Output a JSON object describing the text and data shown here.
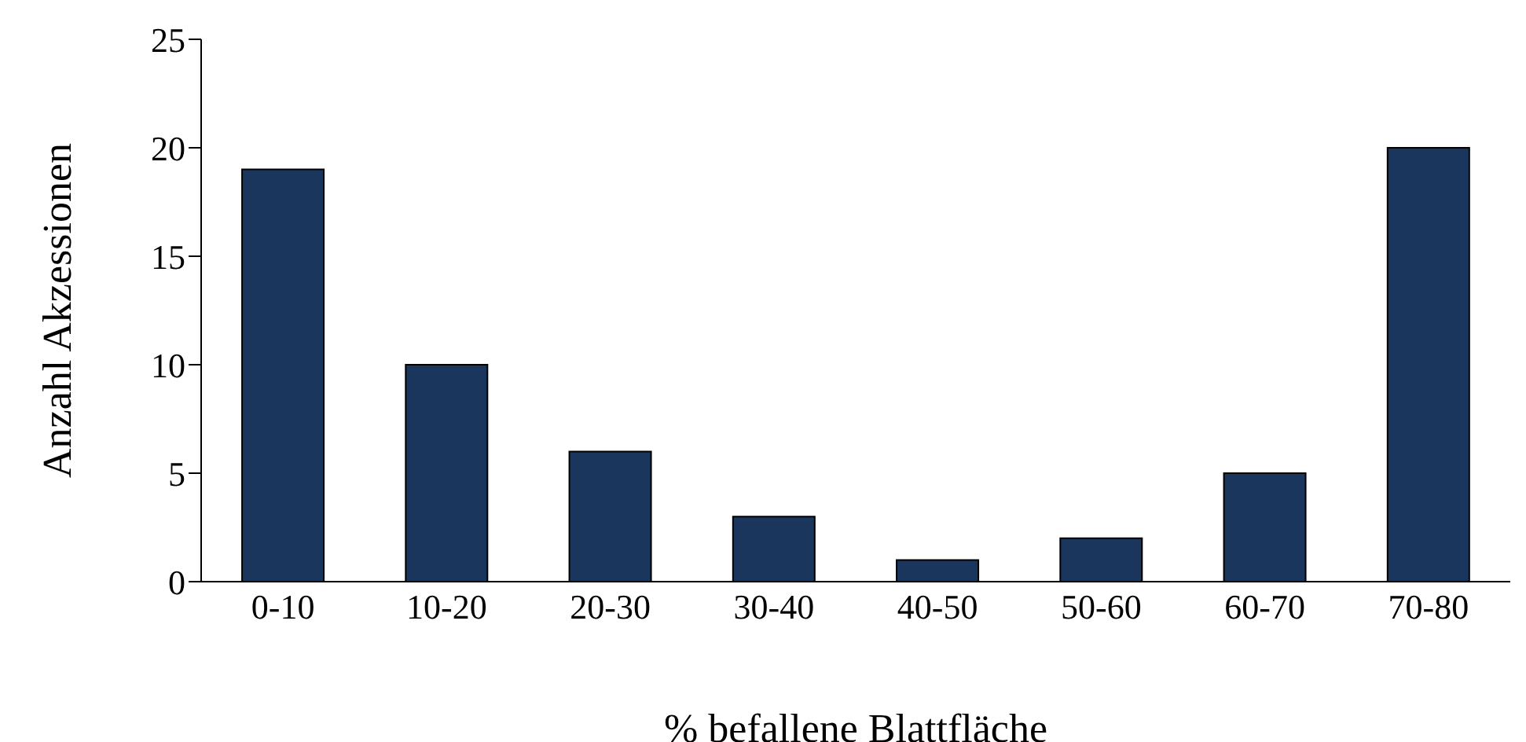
{
  "chart_data": {
    "type": "bar",
    "xlabel": "% befallene Blattfläche",
    "ylabel": "Anzahl Akzessionen",
    "categories": [
      "0-10",
      "10-20",
      "20-30",
      "30-40",
      "40-50",
      "50-60",
      "60-70",
      "70-80"
    ],
    "values": [
      19,
      10,
      6,
      3,
      1,
      2,
      5,
      20
    ],
    "color": "#1b365d",
    "ylim": [
      0,
      25
    ],
    "yticks": [
      0,
      5,
      10,
      15,
      20,
      25
    ],
    "grid": false,
    "legend": false
  }
}
